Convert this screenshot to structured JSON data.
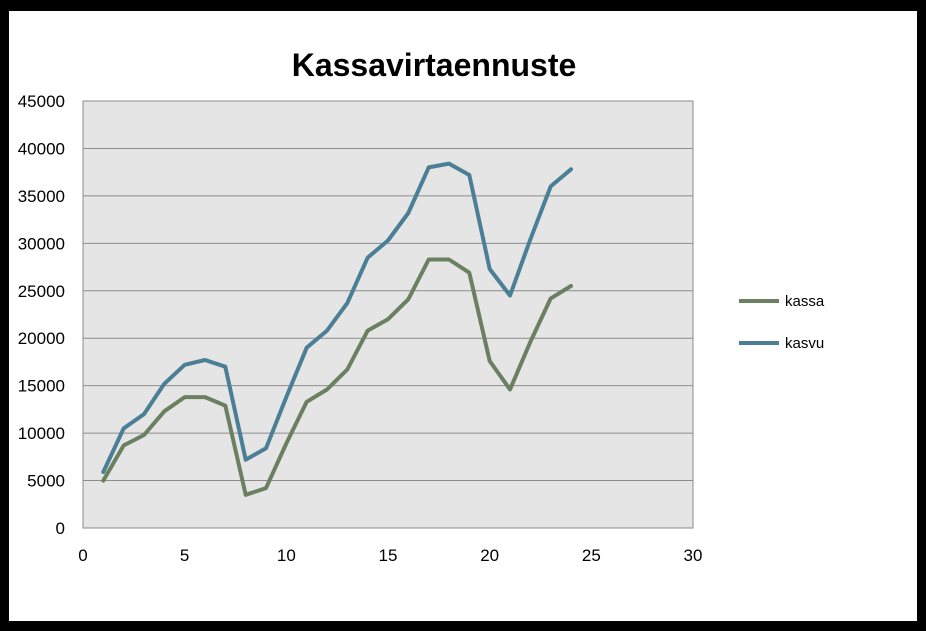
{
  "chart_data": {
    "type": "line",
    "title": "Kassavirtaennuste",
    "xlabel": "",
    "ylabel": "",
    "xlim": [
      0,
      30
    ],
    "ylim": [
      0,
      45000
    ],
    "x_ticks": [
      "0",
      "5",
      "10",
      "15",
      "20",
      "25",
      "30"
    ],
    "y_ticks": [
      "0",
      "5000",
      "10000",
      "15000",
      "20000",
      "25000",
      "30000",
      "35000",
      "40000",
      "45000"
    ],
    "grid": "horizontal",
    "legend_position": "right",
    "series": [
      {
        "name": "kassa",
        "color": "#6b8061",
        "x": [
          1,
          2,
          3,
          4,
          5,
          6,
          7,
          8,
          9,
          10,
          11,
          12,
          13,
          14,
          15,
          16,
          17,
          18,
          19,
          20,
          21,
          22,
          23,
          24
        ],
        "values": [
          5000,
          8700,
          9800,
          12300,
          13800,
          13800,
          12900,
          3500,
          4200,
          8900,
          13300,
          14600,
          16700,
          20800,
          22000,
          24100,
          28300,
          28300,
          26900,
          17600,
          14600,
          19600,
          24200,
          25500
        ]
      },
      {
        "name": "kasvu",
        "color": "#4a7f95",
        "x": [
          1,
          2,
          3,
          4,
          5,
          6,
          7,
          8,
          9,
          10,
          11,
          12,
          13,
          14,
          15,
          16,
          17,
          18,
          19,
          20,
          21,
          22,
          23,
          24
        ],
        "values": [
          5900,
          10500,
          12000,
          15200,
          17200,
          17700,
          17000,
          7200,
          8400,
          13800,
          19000,
          20800,
          23700,
          28500,
          30300,
          33200,
          38000,
          38400,
          37200,
          27300,
          24500,
          30400,
          36000,
          37800
        ]
      }
    ]
  }
}
